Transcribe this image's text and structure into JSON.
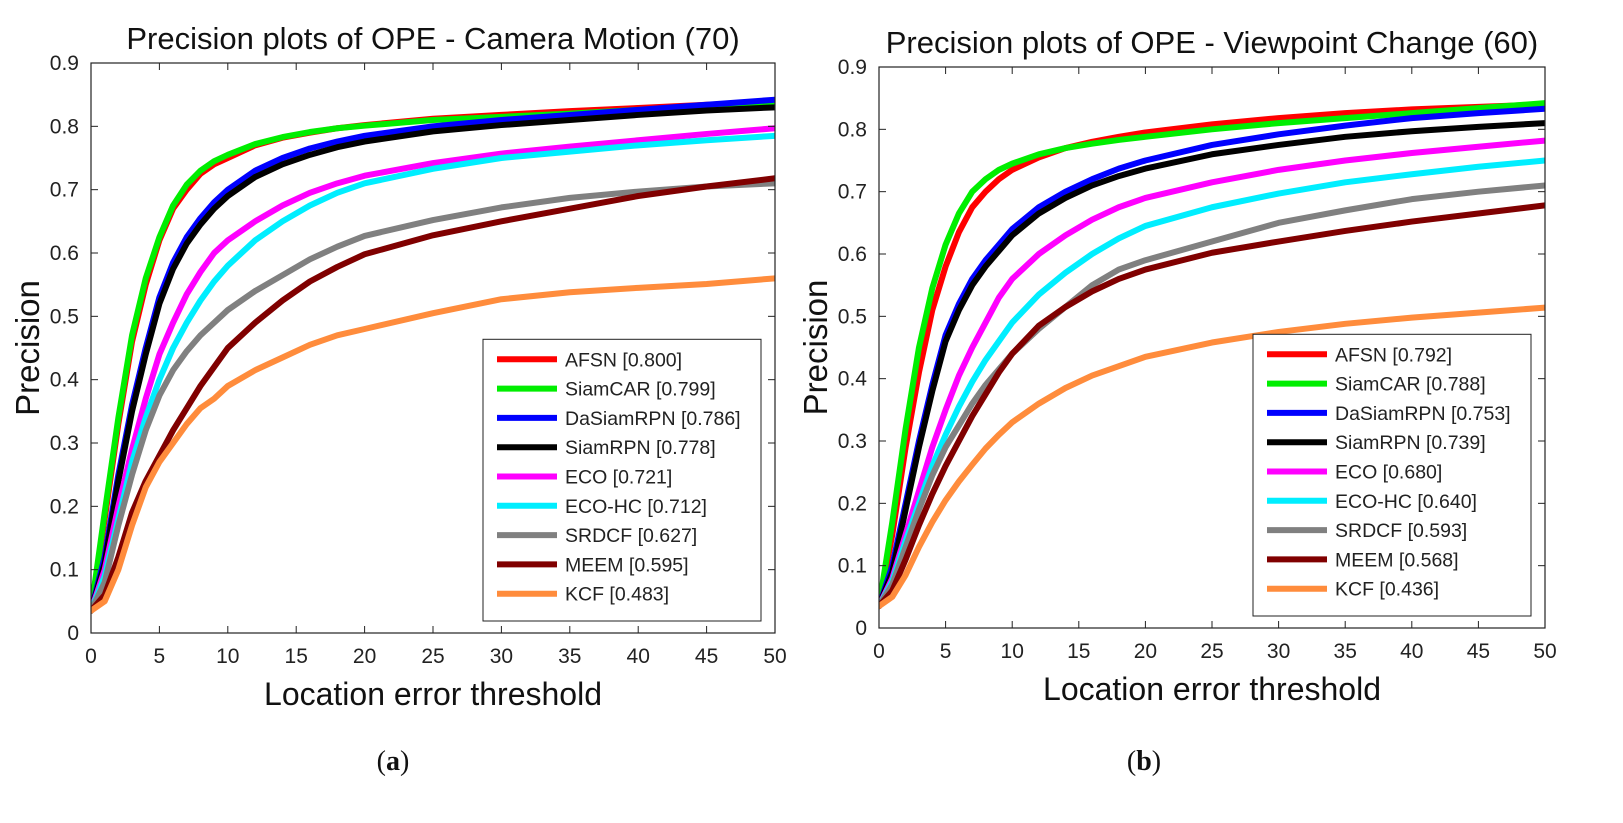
{
  "chart_data": [
    {
      "type": "line",
      "panel_label": "a",
      "title": "Precision plots of OPE - Camera Motion (70)",
      "xlabel": "Location error threshold",
      "ylabel": "Precision",
      "xlim": [
        0,
        50
      ],
      "ylim": [
        0,
        0.9
      ],
      "xticks": [
        0,
        5,
        10,
        15,
        20,
        25,
        30,
        35,
        40,
        45,
        50
      ],
      "yticks": [
        0,
        0.1,
        0.2,
        0.3,
        0.4,
        0.5,
        0.6,
        0.7,
        0.8,
        0.9
      ],
      "grid": false,
      "legend_position": "bottom-right",
      "x": [
        0,
        1,
        2,
        3,
        4,
        5,
        6,
        7,
        8,
        9,
        10,
        12,
        14,
        16,
        18,
        20,
        25,
        30,
        35,
        40,
        45,
        50
      ],
      "series": [
        {
          "name": "AFSN [0.800]",
          "color": "#ff0000",
          "values": [
            0.035,
            0.18,
            0.33,
            0.46,
            0.55,
            0.62,
            0.67,
            0.7,
            0.725,
            0.74,
            0.75,
            0.77,
            0.782,
            0.79,
            0.797,
            0.802,
            0.812,
            0.818,
            0.824,
            0.829,
            0.834,
            0.838
          ]
        },
        {
          "name": "SiamCAR [0.799]",
          "color": "#00ee00",
          "values": [
            0.035,
            0.19,
            0.34,
            0.47,
            0.56,
            0.625,
            0.675,
            0.708,
            0.73,
            0.745,
            0.755,
            0.772,
            0.783,
            0.791,
            0.797,
            0.801,
            0.81,
            0.815,
            0.82,
            0.826,
            0.831,
            0.836
          ]
        },
        {
          "name": "DaSiamRPN [0.786]",
          "color": "#0000ff",
          "values": [
            0.035,
            0.12,
            0.25,
            0.36,
            0.45,
            0.53,
            0.585,
            0.625,
            0.655,
            0.68,
            0.7,
            0.73,
            0.75,
            0.765,
            0.776,
            0.785,
            0.8,
            0.81,
            0.818,
            0.826,
            0.834,
            0.842
          ]
        },
        {
          "name": "SiamRPN [0.778]",
          "color": "#000000",
          "values": [
            0.035,
            0.11,
            0.24,
            0.35,
            0.44,
            0.52,
            0.575,
            0.615,
            0.645,
            0.67,
            0.69,
            0.72,
            0.74,
            0.755,
            0.767,
            0.776,
            0.792,
            0.802,
            0.81,
            0.818,
            0.825,
            0.83
          ]
        },
        {
          "name": "ECO [0.721]",
          "color": "#ff00ff",
          "values": [
            0.035,
            0.1,
            0.2,
            0.29,
            0.37,
            0.44,
            0.49,
            0.535,
            0.57,
            0.6,
            0.62,
            0.65,
            0.675,
            0.695,
            0.71,
            0.722,
            0.742,
            0.757,
            0.768,
            0.778,
            0.788,
            0.797
          ]
        },
        {
          "name": "ECO-HC [0.712]",
          "color": "#00eeff",
          "values": [
            0.035,
            0.09,
            0.18,
            0.27,
            0.34,
            0.4,
            0.45,
            0.49,
            0.525,
            0.555,
            0.58,
            0.62,
            0.65,
            0.675,
            0.695,
            0.71,
            0.733,
            0.75,
            0.76,
            0.77,
            0.778,
            0.785
          ]
        },
        {
          "name": "SRDCF [0.627]",
          "color": "#808080",
          "values": [
            0.035,
            0.08,
            0.17,
            0.25,
            0.32,
            0.375,
            0.415,
            0.445,
            0.47,
            0.49,
            0.51,
            0.54,
            0.565,
            0.59,
            0.61,
            0.627,
            0.652,
            0.672,
            0.687,
            0.697,
            0.705,
            0.71
          ]
        },
        {
          "name": "MEEM [0.595]",
          "color": "#800000",
          "values": [
            0.035,
            0.06,
            0.12,
            0.19,
            0.24,
            0.28,
            0.32,
            0.355,
            0.39,
            0.42,
            0.45,
            0.49,
            0.525,
            0.555,
            0.578,
            0.598,
            0.628,
            0.65,
            0.67,
            0.69,
            0.705,
            0.718
          ]
        },
        {
          "name": "KCF [0.483]",
          "color": "#ff8c3c",
          "values": [
            0.035,
            0.05,
            0.1,
            0.17,
            0.23,
            0.27,
            0.3,
            0.33,
            0.355,
            0.37,
            0.39,
            0.415,
            0.435,
            0.455,
            0.47,
            0.48,
            0.505,
            0.527,
            0.538,
            0.545,
            0.551,
            0.56
          ]
        }
      ]
    },
    {
      "type": "line",
      "panel_label": "b",
      "title": "Precision plots of OPE - Viewpoint Change (60)",
      "xlabel": "Location error threshold",
      "ylabel": "Precision",
      "xlim": [
        0,
        50
      ],
      "ylim": [
        0,
        0.9
      ],
      "xticks": [
        0,
        5,
        10,
        15,
        20,
        25,
        30,
        35,
        40,
        45,
        50
      ],
      "yticks": [
        0,
        0.1,
        0.2,
        0.3,
        0.4,
        0.5,
        0.6,
        0.7,
        0.8,
        0.9
      ],
      "grid": false,
      "legend_position": "bottom-right",
      "x": [
        0,
        1,
        2,
        3,
        4,
        5,
        6,
        7,
        8,
        9,
        10,
        12,
        14,
        16,
        18,
        20,
        25,
        30,
        35,
        40,
        45,
        50
      ],
      "series": [
        {
          "name": "AFSN [0.792]",
          "color": "#ff0000",
          "values": [
            0.035,
            0.15,
            0.29,
            0.41,
            0.51,
            0.58,
            0.635,
            0.675,
            0.7,
            0.72,
            0.735,
            0.755,
            0.77,
            0.78,
            0.788,
            0.795,
            0.808,
            0.818,
            0.826,
            0.832,
            0.836,
            0.84
          ]
        },
        {
          "name": "SiamCAR [0.788]",
          "color": "#00ee00",
          "values": [
            0.035,
            0.17,
            0.32,
            0.45,
            0.545,
            0.615,
            0.665,
            0.7,
            0.72,
            0.735,
            0.745,
            0.76,
            0.77,
            0.777,
            0.783,
            0.788,
            0.8,
            0.81,
            0.818,
            0.826,
            0.834,
            0.842
          ]
        },
        {
          "name": "DaSiamRPN [0.753]",
          "color": "#0000ff",
          "values": [
            0.035,
            0.1,
            0.2,
            0.3,
            0.39,
            0.47,
            0.52,
            0.56,
            0.59,
            0.615,
            0.64,
            0.675,
            0.7,
            0.72,
            0.737,
            0.75,
            0.775,
            0.792,
            0.806,
            0.818,
            0.826,
            0.833
          ]
        },
        {
          "name": "SiamRPN [0.739]",
          "color": "#000000",
          "values": [
            0.035,
            0.09,
            0.19,
            0.29,
            0.38,
            0.46,
            0.51,
            0.55,
            0.58,
            0.605,
            0.63,
            0.665,
            0.69,
            0.71,
            0.725,
            0.737,
            0.76,
            0.775,
            0.788,
            0.797,
            0.804,
            0.81
          ]
        },
        {
          "name": "ECO [0.680]",
          "color": "#ff00ff",
          "values": [
            0.035,
            0.08,
            0.15,
            0.22,
            0.29,
            0.35,
            0.405,
            0.45,
            0.49,
            0.53,
            0.56,
            0.6,
            0.63,
            0.655,
            0.675,
            0.69,
            0.715,
            0.735,
            0.75,
            0.762,
            0.772,
            0.782
          ]
        },
        {
          "name": "ECO-HC [0.640]",
          "color": "#00eeff",
          "values": [
            0.035,
            0.075,
            0.14,
            0.2,
            0.26,
            0.31,
            0.355,
            0.395,
            0.43,
            0.46,
            0.49,
            0.535,
            0.57,
            0.6,
            0.625,
            0.645,
            0.675,
            0.697,
            0.715,
            0.728,
            0.74,
            0.75
          ]
        },
        {
          "name": "SRDCF [0.593]",
          "color": "#808080",
          "values": [
            0.035,
            0.07,
            0.13,
            0.19,
            0.245,
            0.29,
            0.325,
            0.36,
            0.39,
            0.415,
            0.44,
            0.48,
            0.515,
            0.55,
            0.575,
            0.59,
            0.62,
            0.65,
            0.67,
            0.688,
            0.7,
            0.71
          ]
        },
        {
          "name": "MEEM [0.568]",
          "color": "#800000",
          "values": [
            0.035,
            0.06,
            0.11,
            0.165,
            0.215,
            0.26,
            0.3,
            0.34,
            0.375,
            0.41,
            0.44,
            0.485,
            0.515,
            0.54,
            0.56,
            0.575,
            0.602,
            0.62,
            0.637,
            0.652,
            0.665,
            0.678
          ]
        },
        {
          "name": "KCF [0.436]",
          "color": "#ff8c3c",
          "values": [
            0.035,
            0.05,
            0.085,
            0.13,
            0.17,
            0.205,
            0.235,
            0.262,
            0.288,
            0.31,
            0.33,
            0.36,
            0.385,
            0.405,
            0.42,
            0.435,
            0.458,
            0.475,
            0.488,
            0.498,
            0.506,
            0.514
          ]
        }
      ]
    }
  ]
}
